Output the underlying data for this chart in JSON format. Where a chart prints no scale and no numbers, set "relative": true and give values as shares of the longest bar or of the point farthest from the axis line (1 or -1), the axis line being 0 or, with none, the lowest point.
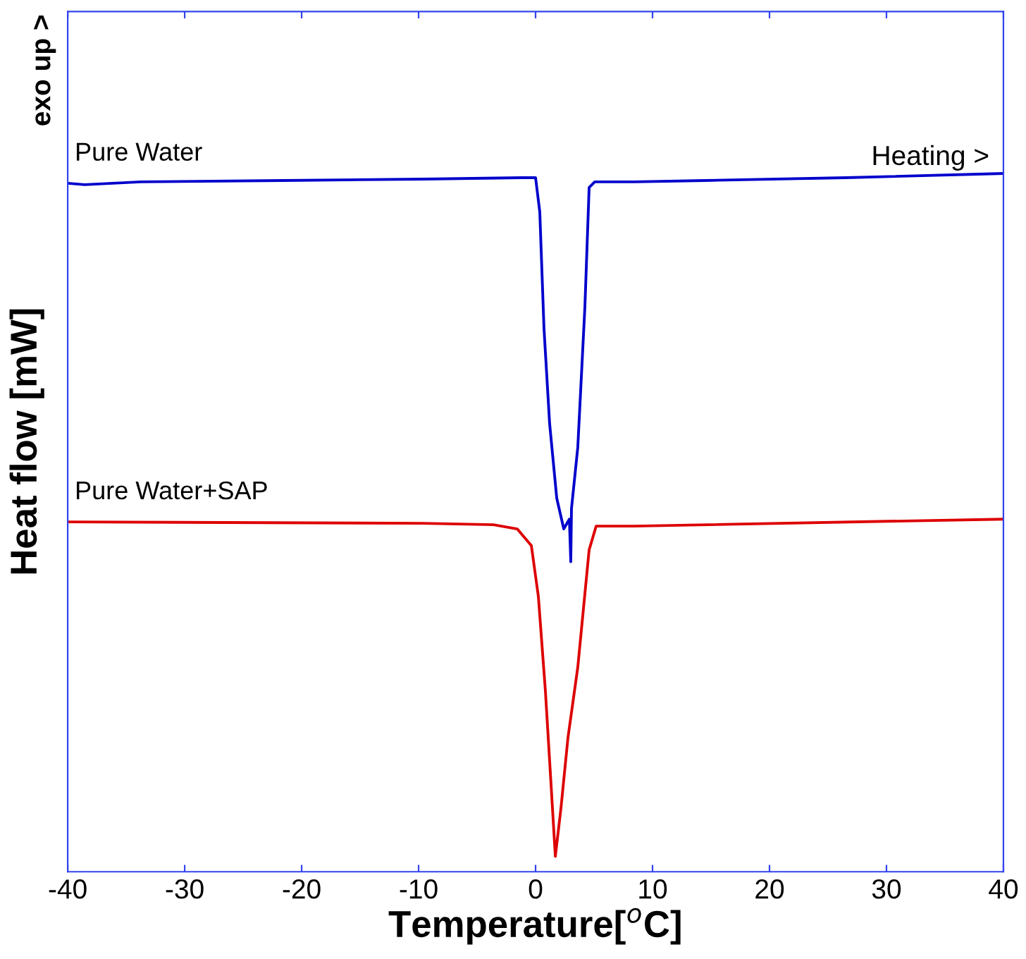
{
  "chart_data": {
    "type": "line",
    "relative": true,
    "xlabel": "Temperature[$^{o}$C]",
    "ylabel": "Heat flow [mW]",
    "xlim": [
      -40,
      40
    ],
    "xticks": [
      -40,
      -30,
      -20,
      -10,
      0,
      10,
      20,
      30,
      40
    ],
    "grid": false,
    "legend": false,
    "marker": "none",
    "line_style": "solid",
    "annotations": [
      "exo up >",
      "Heating >"
    ],
    "series": [
      {
        "name": "Pure Water",
        "color": "#0000cc",
        "x": [
          -40,
          -38.55,
          -33.73,
          -21.69,
          -9.64,
          -1.2,
          0,
          0.36,
          0.72,
          1.2,
          1.81,
          2.41,
          2.89,
          3.01,
          3.07,
          3.61,
          4.22,
          4.58,
          5.06,
          8.43,
          14.46,
          26.51,
          40
        ],
        "values": [
          0.986,
          0.984,
          0.988,
          0.99,
          0.992,
          0.994,
          0.994,
          0.945,
          0.778,
          0.642,
          0.535,
          0.491,
          0.505,
          0.444,
          0.52,
          0.608,
          0.81,
          0.98,
          0.988,
          0.988,
          0.99,
          0.994,
          1.0
        ]
      },
      {
        "name": "Pure Water+SAP",
        "color": "#dd0000",
        "x": [
          -40,
          -9.64,
          -3.61,
          -1.57,
          -0.36,
          0.24,
          0.84,
          1.33,
          1.69,
          2.17,
          2.77,
          3.61,
          4.58,
          5.18,
          8.43,
          40
        ],
        "values": [
          0.501,
          0.499,
          0.497,
          0.491,
          0.467,
          0.394,
          0.259,
          0.123,
          0.022,
          0.091,
          0.192,
          0.293,
          0.461,
          0.495,
          0.495,
          0.505
        ]
      }
    ]
  }
}
